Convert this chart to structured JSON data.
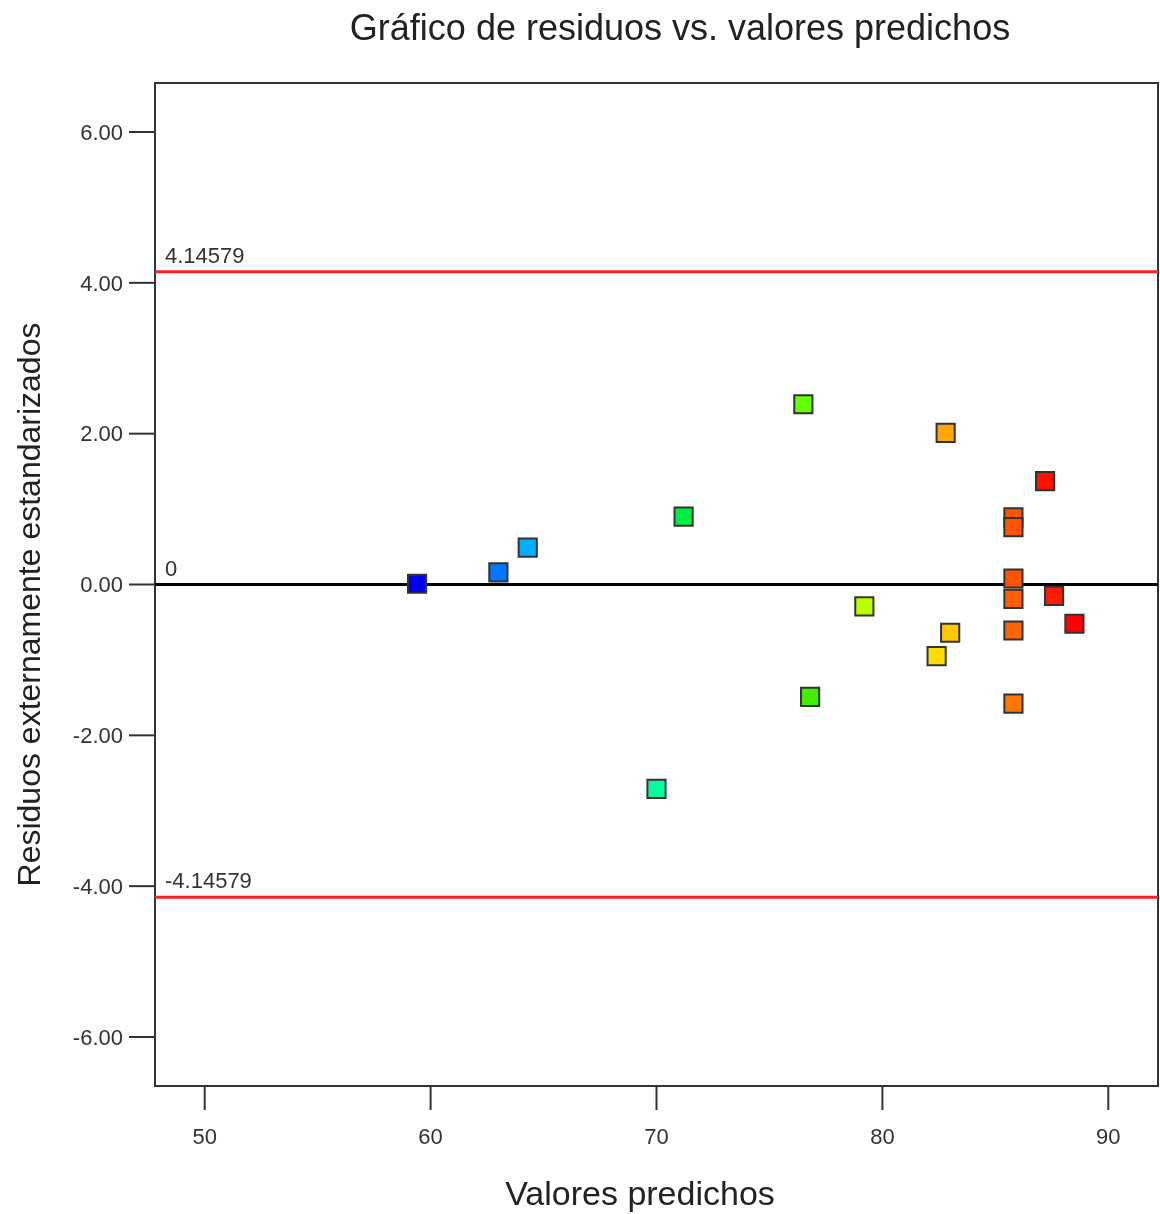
{
  "chart_data": {
    "type": "scatter",
    "title": "Gráfico de residuos vs. valores predichos",
    "xlabel": "Valores predichos",
    "ylabel": "Residuos externamente estandarizados",
    "xlim": [
      47.8,
      92.2
    ],
    "xticks": [
      50,
      60,
      70,
      80,
      90
    ],
    "ylim": [
      -6.65,
      6.65
    ],
    "yticks": [
      {
        "value": 6,
        "label": "6.00"
      },
      {
        "value": 4,
        "label": "4.00"
      },
      {
        "value": 2,
        "label": "2.00"
      },
      {
        "value": 0,
        "label": "0.00"
      },
      {
        "value": -2,
        "label": "-2.00"
      },
      {
        "value": -4,
        "label": "-4.00"
      },
      {
        "value": -6,
        "label": "-6.00"
      }
    ],
    "grid": false,
    "marker": "square",
    "ref_lines": [
      {
        "axis": "y",
        "value": 4.14579,
        "label": "4.14579",
        "color": "#ff2020"
      },
      {
        "axis": "y",
        "value": 0,
        "label": "0",
        "color": "#000000"
      },
      {
        "axis": "y",
        "value": -4.14579,
        "label": "-4.14579",
        "color": "#ff2020"
      }
    ],
    "series": [
      {
        "x": [
          59.4,
          63.0,
          64.3,
          70.0,
          71.2,
          76.5,
          76.8,
          79.2,
          82.4,
          82.8,
          83.0,
          85.8,
          85.8,
          85.8,
          85.8,
          85.8,
          85.8,
          87.2,
          87.6,
          88.5
        ],
        "values": [
          0.01,
          0.16,
          0.49,
          -2.71,
          0.9,
          2.39,
          -1.49,
          -0.29,
          -0.95,
          2.01,
          -0.64,
          0.89,
          0.76,
          0.08,
          -0.19,
          -0.61,
          -1.58,
          1.37,
          -0.15,
          -0.52
        ],
        "colors": [
          "#0000ee",
          "#0077ff",
          "#00b0ff",
          "#00ff99",
          "#00ee44",
          "#66ff00",
          "#44ee00",
          "#bbff00",
          "#ffdd00",
          "#ffa500",
          "#ffc800",
          "#ff5500",
          "#ff5500",
          "#ff5500",
          "#ff5f00",
          "#ff6600",
          "#ff7700",
          "#ff1100",
          "#ff1a00",
          "#ff0000"
        ]
      }
    ]
  }
}
